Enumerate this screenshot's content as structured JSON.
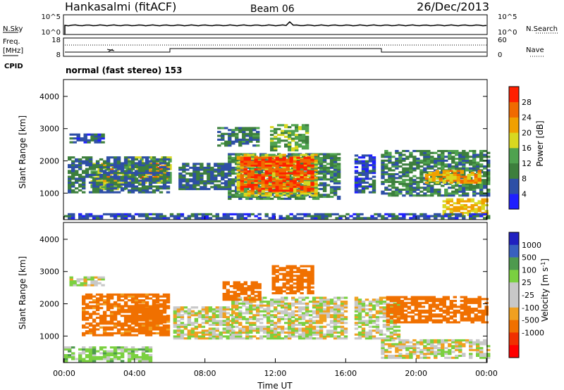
{
  "header": {
    "station": "Hankasalmi (fitACF)",
    "beam": "Beam 06",
    "date": "26/Dec/2013"
  },
  "noise_panel": {
    "left_label": "N.Sky",
    "right_label": "N.Search",
    "left_ticks": [
      "10^5",
      "10^0"
    ],
    "right_ticks": [
      "10^5",
      "10^0"
    ]
  },
  "freq_panel": {
    "left_label_line1": "Freq.",
    "left_label_line2": "[MHz]",
    "right_label": "Nave",
    "left_ticks": [
      "18",
      "8"
    ],
    "right_ticks": [
      "60",
      "0"
    ]
  },
  "cpid": {
    "label": "CPID",
    "value": "normal (fast stereo) 153"
  },
  "colors": {
    "power": [
      "#1f1fff",
      "#2e4fa6",
      "#3d7f3d",
      "#4fa24f",
      "#d8d820",
      "#f0a000",
      "#f06a00",
      "#ff2000"
    ],
    "velocity": [
      "#2020c0",
      "#3860c0",
      "#4e9a4e",
      "#7ad040",
      "#c8c8c8",
      "#c8c8c8",
      "#f0a020",
      "#f07000",
      "#f03000",
      "#ff0000"
    ]
  },
  "chart_data": [
    {
      "type": "heatmap",
      "title": "",
      "xlabel": "Time UT",
      "ylabel": "Slant Range [km]",
      "xlim": [
        "00:00",
        "24:00"
      ],
      "ylim": [
        200,
        4500
      ],
      "xticks": [
        "00:00",
        "04:00",
        "08:00",
        "12:00",
        "16:00",
        "20:00",
        "00:00"
      ],
      "yticks": [
        "1000",
        "2000",
        "3000",
        "4000"
      ],
      "colorbar": {
        "label": "Power [dB]",
        "ticks": [
          "4",
          "8",
          "12",
          "16",
          "20",
          "24",
          "28"
        ],
        "range": [
          0,
          30
        ]
      },
      "regions": [
        {
          "t0": 0.3,
          "t1": 2.2,
          "r0": 2550,
          "r1": 2800,
          "value": 7
        },
        {
          "t0": 1.5,
          "t1": 3.5,
          "r0": 1100,
          "r1": 1900,
          "value": 17
        },
        {
          "t0": 2.2,
          "t1": 3.0,
          "r0": 1350,
          "r1": 1750,
          "value": 22
        },
        {
          "t0": 3.5,
          "t1": 6.0,
          "r0": 1300,
          "r1": 2100,
          "value": 16
        },
        {
          "t0": 4.3,
          "t1": 5.9,
          "r0": 1450,
          "r1": 1900,
          "value": 25
        },
        {
          "t0": 0.2,
          "t1": 6.0,
          "r0": 1000,
          "r1": 2100,
          "value": 8
        },
        {
          "t0": 6.5,
          "t1": 9.3,
          "r0": 1100,
          "r1": 1900,
          "value": 8
        },
        {
          "t0": 9.3,
          "t1": 15.5,
          "r0": 800,
          "r1": 2200,
          "value": 10
        },
        {
          "t0": 9.8,
          "t1": 14.3,
          "r0": 900,
          "r1": 2200,
          "value": 18
        },
        {
          "t0": 10.0,
          "t1": 14.0,
          "r0": 1050,
          "r1": 2100,
          "value": 28
        },
        {
          "t0": 11.7,
          "t1": 13.8,
          "r0": 2300,
          "r1": 3100,
          "value": 14
        },
        {
          "t0": 8.7,
          "t1": 11.0,
          "r0": 2450,
          "r1": 3050,
          "value": 9
        },
        {
          "t0": 16.5,
          "t1": 17.6,
          "r0": 1000,
          "r1": 2200,
          "value": 6
        },
        {
          "t0": 18.0,
          "t1": 24.0,
          "r0": 900,
          "r1": 2300,
          "value": 10
        },
        {
          "t0": 20.5,
          "t1": 23.5,
          "r0": 1300,
          "r1": 1700,
          "value": 22
        },
        {
          "t0": 21.5,
          "t1": 24.0,
          "r0": 300,
          "r1": 800,
          "value": 20
        },
        {
          "t0": 0.0,
          "t1": 24.0,
          "r0": 200,
          "r1": 380,
          "value": 6
        }
      ]
    },
    {
      "type": "heatmap",
      "title": "",
      "xlabel": "Time UT",
      "ylabel": "Slant Range [km]",
      "xlim": [
        "00:00",
        "24:00"
      ],
      "ylim": [
        200,
        4500
      ],
      "xticks": [
        "00:00",
        "04:00",
        "08:00",
        "12:00",
        "16:00",
        "20:00",
        "00:00"
      ],
      "yticks": [
        "1000",
        "2000",
        "3000",
        "4000"
      ],
      "colorbar": {
        "label": "Velocity [m s-1]",
        "ticks": [
          "1000",
          "500",
          "100",
          "25",
          "-25",
          "-100",
          "-500",
          "-1000"
        ],
        "range": [
          -1200,
          1200
        ]
      },
      "regions": [
        {
          "t0": 0.3,
          "t1": 2.1,
          "r0": 2550,
          "r1": 2800,
          "value": 0
        },
        {
          "t0": 1.0,
          "t1": 6.0,
          "r0": 1000,
          "r1": 2300,
          "value": -150
        },
        {
          "t0": 3.8,
          "t1": 5.8,
          "r0": 1400,
          "r1": 2000,
          "value": -400
        },
        {
          "t0": 6.2,
          "t1": 9.5,
          "r0": 900,
          "r1": 1900,
          "value": 0
        },
        {
          "t0": 9.5,
          "t1": 16.0,
          "r0": 900,
          "r1": 2200,
          "value": 0
        },
        {
          "t0": 9.0,
          "t1": 11.0,
          "r0": 2100,
          "r1": 2700,
          "value": -300
        },
        {
          "t0": 11.8,
          "t1": 14.0,
          "r0": 2300,
          "r1": 3200,
          "value": -250
        },
        {
          "t0": 16.5,
          "t1": 19.0,
          "r0": 900,
          "r1": 2200,
          "value": 0
        },
        {
          "t0": 18.3,
          "t1": 24.0,
          "r0": 1400,
          "r1": 2200,
          "value": -200
        },
        {
          "t0": 18.0,
          "t1": 24.0,
          "r0": 300,
          "r1": 900,
          "value": 0
        },
        {
          "t0": 0.0,
          "t1": 5.0,
          "r0": 200,
          "r1": 650,
          "value": 60
        }
      ]
    }
  ]
}
